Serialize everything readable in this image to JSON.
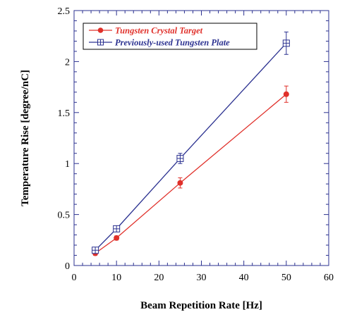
{
  "chart_data": {
    "type": "line",
    "title": "",
    "xlabel": "Beam Repetition Rate [Hz]",
    "ylabel": "Temperature Rise [degree/nC]",
    "xlim": [
      0,
      60
    ],
    "ylim": [
      0,
      2.5
    ],
    "xticks": [
      0,
      10,
      20,
      30,
      40,
      50,
      60
    ],
    "yticks": [
      0,
      0.5,
      1,
      1.5,
      2,
      2.5
    ],
    "xtick_labels": [
      "0",
      "10",
      "20",
      "30",
      "40",
      "50",
      "60"
    ],
    "ytick_labels": [
      "0",
      "0.5",
      "1",
      "1.5",
      "2",
      "2.5"
    ],
    "grid": false,
    "legend_position": "top-left",
    "series": [
      {
        "name": "Tungsten Crystal Target",
        "color": "#e0302a",
        "marker": "filled-circle",
        "x": [
          5,
          10,
          25,
          50
        ],
        "y": [
          0.12,
          0.27,
          0.81,
          1.68
        ],
        "error": [
          0.02,
          0.02,
          0.05,
          0.08
        ]
      },
      {
        "name": "Previously-used Tungsten Plate",
        "color": "#2b3190",
        "marker": "crossed-square",
        "x": [
          5,
          10,
          25,
          50
        ],
        "y": [
          0.15,
          0.36,
          1.05,
          2.18
        ],
        "error": [
          0.02,
          0.03,
          0.05,
          0.11
        ]
      }
    ]
  }
}
